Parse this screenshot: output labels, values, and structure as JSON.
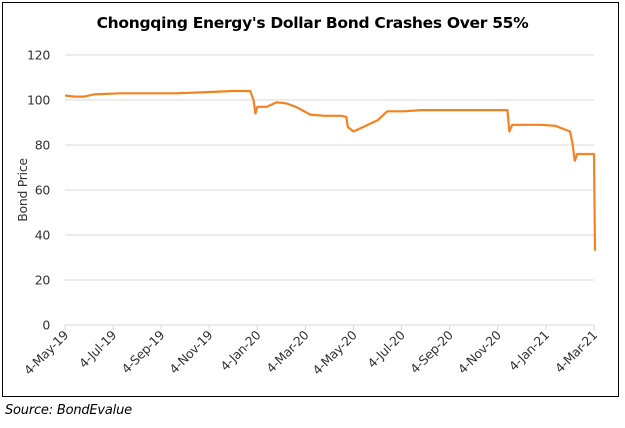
{
  "chart_data": {
    "type": "line",
    "title": "Chongqing Energy's Dollar Bond Crashes  Over 55%",
    "xlabel": "",
    "ylabel": "Bond Price",
    "ylim": [
      0,
      120
    ],
    "yticks": [
      0,
      20,
      40,
      60,
      80,
      100,
      120
    ],
    "ytick_labels": [
      "0",
      "20",
      "40",
      "60",
      "80",
      "100",
      "120"
    ],
    "xtick_labels": [
      "4-May-19",
      "4-Jul-19",
      "4-Sep-19",
      "4-Nov-19",
      "4-Jan-20",
      "4-Mar-20",
      "4-May-20",
      "4-Jul-20",
      "4-Sep-20",
      "4-Nov-20",
      "4-Jan-21",
      "4-Mar-21"
    ],
    "x_range_ticks": [
      0,
      11
    ],
    "grid": "horizontal",
    "legend": "none",
    "series": [
      {
        "name": "Bond Price",
        "color": "#F58220",
        "x_tick_units": [
          0,
          0.2,
          0.4,
          0.6,
          1.15,
          1.7,
          2.3,
          2.95,
          3.5,
          3.85,
          3.92,
          3.96,
          4.0,
          4.2,
          4.4,
          4.6,
          4.8,
          5.1,
          5.4,
          5.75,
          5.85,
          5.88,
          6.0,
          6.2,
          6.5,
          6.7,
          7.05,
          7.4,
          7.7,
          8.3,
          9.2,
          9.24,
          9.3,
          9.55,
          9.9,
          10.2,
          10.5,
          10.55,
          10.6,
          10.65,
          10.7,
          11.0,
          11.02
        ],
        "values": [
          102,
          101.5,
          101.5,
          102.5,
          103,
          103,
          103,
          103.5,
          104,
          104,
          100,
          94,
          97,
          97,
          99,
          98.5,
          97,
          93.5,
          93,
          93,
          92.5,
          88,
          86,
          88,
          91,
          95,
          95,
          95.5,
          95.5,
          95.5,
          95.5,
          86,
          89,
          89,
          89,
          88.5,
          86,
          81,
          73,
          76,
          76,
          76,
          33
        ]
      }
    ]
  },
  "source": "Source: BondEvalue"
}
